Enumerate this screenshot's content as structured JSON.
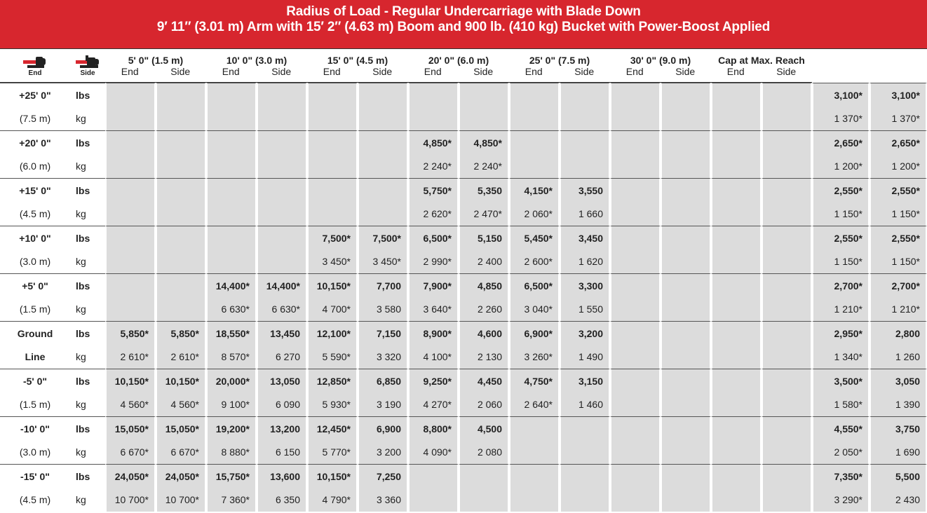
{
  "header": {
    "title": "Radius of Load - Regular Undercarriage with Blade Down",
    "subtitle": "9′ 11″ (3.01 m) Arm with 15′ 2″ (4.63 m) Boom and 900 lb. (410 kg) Bucket with Power-Boost Applied"
  },
  "icons": {
    "end": "End",
    "side": "Side"
  },
  "columns": [
    {
      "label": "5' 0\" (1.5 m)",
      "end": "End",
      "side": "Side"
    },
    {
      "label": "10' 0\" (3.0 m)",
      "end": "End",
      "side": "Side"
    },
    {
      "label": "15' 0\" (4.5 m)",
      "end": "End",
      "side": "Side"
    },
    {
      "label": "20' 0\" (6.0 m)",
      "end": "End",
      "side": "Side"
    },
    {
      "label": "25' 0\" (7.5 m)",
      "end": "End",
      "side": "Side"
    },
    {
      "label": "30' 0\" (9.0 m)",
      "end": "End",
      "side": "Side"
    },
    {
      "label": "Cap at Max. Reach",
      "end": "End",
      "side": "Side"
    }
  ],
  "rows": [
    {
      "height": "+25' 0\"",
      "metric": "(7.5 m)",
      "lbs_unit": "lbs",
      "kg_unit": "kg",
      "lbs": [
        null,
        null,
        null,
        null,
        null,
        null,
        null,
        null,
        null,
        null,
        null,
        null,
        null,
        null,
        "3,100*",
        "3,100*"
      ],
      "kg": [
        null,
        null,
        null,
        null,
        null,
        null,
        null,
        null,
        null,
        null,
        null,
        null,
        null,
        null,
        "1 370*",
        "1 370*"
      ]
    },
    {
      "height": "+20' 0\"",
      "metric": "(6.0 m)",
      "lbs_unit": "lbs",
      "kg_unit": "kg",
      "lbs": [
        null,
        null,
        null,
        null,
        null,
        null,
        "4,850*",
        "4,850*",
        null,
        null,
        null,
        null,
        null,
        null,
        "2,650*",
        "2,650*"
      ],
      "kg": [
        null,
        null,
        null,
        null,
        null,
        null,
        "2 240*",
        "2 240*",
        null,
        null,
        null,
        null,
        null,
        null,
        "1 200*",
        "1 200*"
      ]
    },
    {
      "height": "+15' 0\"",
      "metric": "(4.5 m)",
      "lbs_unit": "lbs",
      "kg_unit": "kg",
      "lbs": [
        null,
        null,
        null,
        null,
        null,
        null,
        "5,750*",
        "5,350",
        "4,150*",
        "3,550",
        null,
        null,
        null,
        null,
        "2,550*",
        "2,550*"
      ],
      "kg": [
        null,
        null,
        null,
        null,
        null,
        null,
        "2 620*",
        "2 470*",
        "2 060*",
        "1 660",
        null,
        null,
        null,
        null,
        "1 150*",
        "1 150*"
      ]
    },
    {
      "height": "+10' 0\"",
      "metric": "(3.0 m)",
      "lbs_unit": "lbs",
      "kg_unit": "kg",
      "lbs": [
        null,
        null,
        null,
        null,
        "7,500*",
        "7,500*",
        "6,500*",
        "5,150",
        "5,450*",
        "3,450",
        null,
        null,
        null,
        null,
        "2,550*",
        "2,550*"
      ],
      "kg": [
        null,
        null,
        null,
        null,
        "3 450*",
        "3 450*",
        "2 990*",
        "2 400",
        "2 600*",
        "1 620",
        null,
        null,
        null,
        null,
        "1 150*",
        "1 150*"
      ]
    },
    {
      "height": "+5' 0\"",
      "metric": "(1.5 m)",
      "lbs_unit": "lbs",
      "kg_unit": "kg",
      "lbs": [
        null,
        null,
        "14,400*",
        "14,400*",
        "10,150*",
        "7,700",
        "7,900*",
        "4,850",
        "6,500*",
        "3,300",
        null,
        null,
        null,
        null,
        "2,700*",
        "2,700*"
      ],
      "kg": [
        null,
        null,
        "6 630*",
        "6 630*",
        "4 700*",
        "3 580",
        "3 640*",
        "2 260",
        "3 040*",
        "1 550",
        null,
        null,
        null,
        null,
        "1 210*",
        "1 210*"
      ]
    },
    {
      "label": [
        "Ground",
        "Line"
      ],
      "lbs_unit": "lbs",
      "kg_unit": "kg",
      "lbs": [
        "5,850*",
        "5,850*",
        "18,550*",
        "13,450",
        "12,100*",
        "7,150",
        "8,900*",
        "4,600",
        "6,900*",
        "3,200",
        null,
        null,
        null,
        null,
        "2,950*",
        "2,800"
      ],
      "kg": [
        "2 610*",
        "2 610*",
        "8 570*",
        "6 270",
        "5 590*",
        "3 320",
        "4 100*",
        "2 130",
        "3 260*",
        "1 490",
        null,
        null,
        null,
        null,
        "1 340*",
        "1 260"
      ]
    },
    {
      "height": "-5' 0\"",
      "metric": "(1.5 m)",
      "lbs_unit": "lbs",
      "kg_unit": "kg",
      "lbs": [
        "10,150*",
        "10,150*",
        "20,000*",
        "13,050",
        "12,850*",
        "6,850",
        "9,250*",
        "4,450",
        "4,750*",
        "3,150",
        null,
        null,
        null,
        null,
        "3,500*",
        "3,050"
      ],
      "kg": [
        "4 560*",
        "4 560*",
        "9 100*",
        "6 090",
        "5 930*",
        "3 190",
        "4 270*",
        "2 060",
        "2 640*",
        "1 460",
        null,
        null,
        null,
        null,
        "1 580*",
        "1 390"
      ]
    },
    {
      "height": "-10' 0\"",
      "metric": "(3.0 m)",
      "lbs_unit": "lbs",
      "kg_unit": "kg",
      "lbs": [
        "15,050*",
        "15,050*",
        "19,200*",
        "13,200",
        "12,450*",
        "6,900",
        "8,800*",
        "4,500",
        null,
        null,
        null,
        null,
        null,
        null,
        "4,550*",
        "3,750"
      ],
      "kg": [
        "6 670*",
        "6 670*",
        "8 880*",
        "6 150",
        "5 770*",
        "3 200",
        "4 090*",
        "2 080",
        null,
        null,
        null,
        null,
        null,
        null,
        "2 050*",
        "1 690"
      ]
    },
    {
      "height": "-15' 0\"",
      "metric": "(4.5 m)",
      "lbs_unit": "lbs",
      "kg_unit": "kg",
      "lbs": [
        "24,050*",
        "24,050*",
        "15,750*",
        "13,600",
        "10,150*",
        "7,250",
        null,
        null,
        null,
        null,
        null,
        null,
        null,
        null,
        "7,350*",
        "5,500"
      ],
      "kg": [
        "10 700*",
        "10 700*",
        "7 360*",
        "6 350",
        "4 790*",
        "3 360",
        null,
        null,
        null,
        null,
        null,
        null,
        null,
        null,
        "3 290*",
        "2 430"
      ]
    }
  ]
}
